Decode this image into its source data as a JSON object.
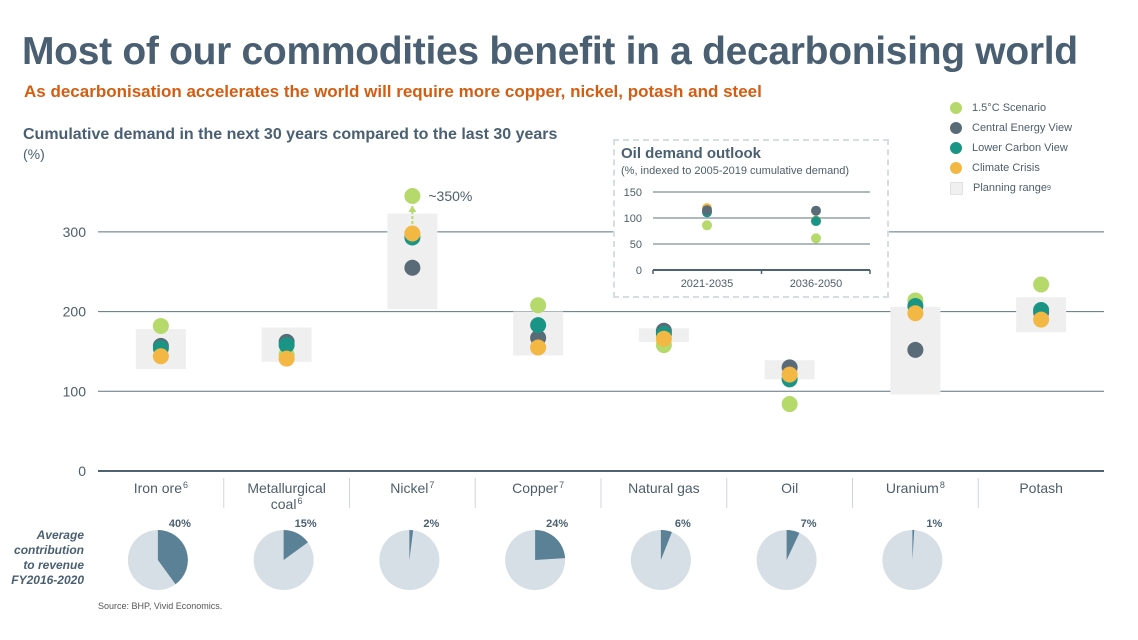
{
  "header": {
    "title": "Most of our commodities benefit in a decarbonising world",
    "subtitle": "As decarbonisation accelerates the world will require more copper, nickel, potash and steel"
  },
  "legend": {
    "items": [
      {
        "label": "1.5°C Scenario",
        "color": "#b5d96b"
      },
      {
        "label": "Central Energy View",
        "color": "#5a6b78"
      },
      {
        "label": "Lower Carbon View",
        "color": "#1a9585"
      },
      {
        "label": "Climate Crisis",
        "color": "#f3b743"
      }
    ],
    "planning_label": "Planning range",
    "planning_sup": "9"
  },
  "chart_data": [
    {
      "type": "scatter",
      "title": "Cumulative demand in the next 30 years compared to the last 30 years",
      "unit": "(%)",
      "ylim": [
        0,
        360
      ],
      "yticks": [
        0,
        100,
        200,
        300
      ],
      "categories": [
        {
          "label": "Iron ore",
          "sup": "6",
          "range": [
            128,
            178
          ],
          "values": {
            "s15": 182,
            "central": 157,
            "lower": 154,
            "crisis": 144
          }
        },
        {
          "label": "Metallurgical coal",
          "sup": "6",
          "range": [
            137,
            180
          ],
          "values": {
            "s15": 146,
            "central": 162,
            "lower": 158,
            "crisis": 141
          }
        },
        {
          "label": "Nickel",
          "sup": "7",
          "range": [
            203,
            323
          ],
          "values": {
            "s15": 296,
            "central": 255,
            "lower": 293,
            "crisis": 298
          },
          "offscale_value": 350,
          "offscale_label": "~350%"
        },
        {
          "label": "Copper",
          "sup": "7",
          "range": [
            145,
            200
          ],
          "values": {
            "s15": 208,
            "central": 167,
            "lower": 183,
            "crisis": 155
          }
        },
        {
          "label": "Natural gas",
          "sup": "",
          "range": [
            162,
            179
          ],
          "values": {
            "s15": 158,
            "central": 176,
            "lower": 172,
            "crisis": 166
          }
        },
        {
          "label": "Oil",
          "sup": "",
          "range": [
            115,
            139
          ],
          "values": {
            "s15": 84,
            "central": 130,
            "lower": 115,
            "crisis": 121
          }
        },
        {
          "label": "Uranium",
          "sup": "8",
          "range": [
            96,
            206
          ],
          "values": {
            "s15": 214,
            "central": 152,
            "lower": 207,
            "crisis": 198
          }
        },
        {
          "label": "Potash",
          "sup": "",
          "range": [
            174,
            218
          ],
          "values": {
            "s15": 234,
            "central": 199,
            "lower": 202,
            "crisis": 190
          }
        }
      ]
    },
    {
      "type": "scatter",
      "title": "Oil demand outlook",
      "subtitle": "(%, indexed to 2005-2019 cumulative demand)",
      "ylim": [
        0,
        150
      ],
      "yticks": [
        0,
        50,
        100,
        150
      ],
      "categories": [
        "2021-2035",
        "2036-2050"
      ],
      "series": [
        {
          "name": "1.5°C Scenario",
          "values": [
            86,
            61
          ]
        },
        {
          "name": "Central Energy View",
          "values": [
            115,
            114
          ]
        },
        {
          "name": "Lower Carbon View",
          "values": [
            111,
            94
          ]
        },
        {
          "name": "Climate Crisis",
          "values": [
            119,
            95
          ]
        }
      ]
    },
    {
      "type": "pie",
      "title": "Average contribution to revenue FY2016-2020",
      "labels": [
        "Iron ore",
        "Metallurgical coal",
        "Nickel",
        "Copper",
        "Natural gas",
        "Oil",
        "Uranium",
        "Potash"
      ],
      "values": [
        40,
        15,
        2,
        24,
        6,
        7,
        1,
        0
      ],
      "value_labels": [
        "40%",
        "15%",
        "2%",
        "24%",
        "6%",
        "7%",
        "1%",
        ""
      ]
    }
  ],
  "avg_label": "Average contribution to revenue FY2016-2020",
  "source": "Source: BHP, Vivid Economics."
}
